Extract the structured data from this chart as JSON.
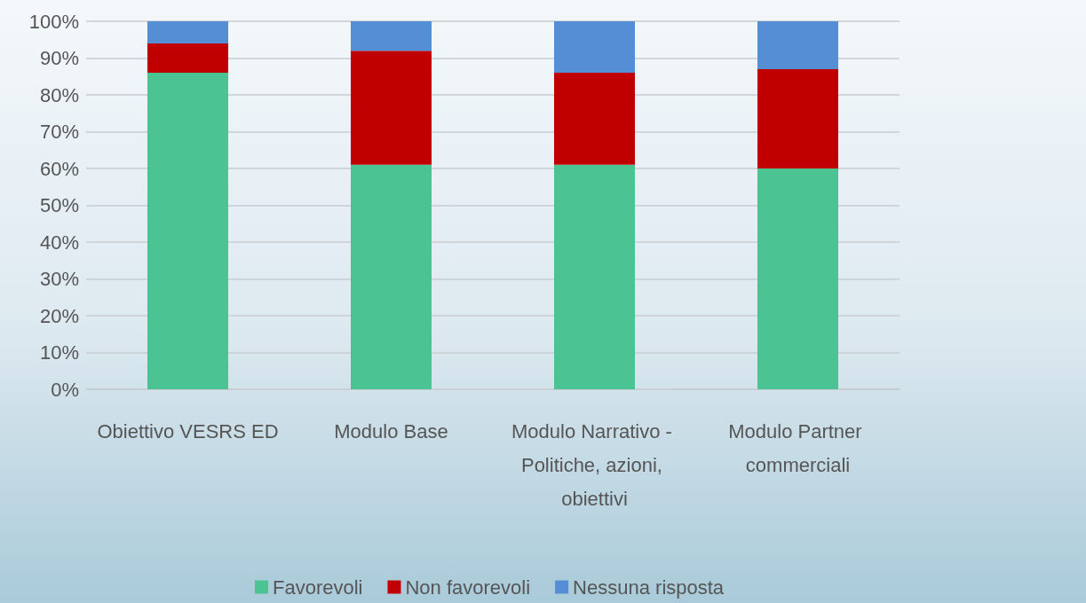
{
  "chart_data": {
    "type": "bar",
    "stacked": true,
    "categories": [
      "Obiettivo VESRS ED",
      "Modulo Base",
      "Modulo Narrativo - Politiche, azioni, obiettivi",
      "Modulo Partner commerciali"
    ],
    "series": [
      {
        "name": "Favorevoli",
        "color": "#4bc393",
        "values": [
          86,
          61,
          61,
          60
        ]
      },
      {
        "name": "Non favorevoli",
        "color": "#c00000",
        "values": [
          8,
          31,
          25,
          27
        ]
      },
      {
        "name": "Nessuna risposta",
        "color": "#558ed5",
        "values": [
          6,
          8,
          14,
          13
        ]
      }
    ],
    "ylim": [
      0,
      100
    ],
    "yticks": [
      {
        "value": 0,
        "label": "0%"
      },
      {
        "value": 10,
        "label": "10%"
      },
      {
        "value": 20,
        "label": "20%"
      },
      {
        "value": 30,
        "label": "30%"
      },
      {
        "value": 40,
        "label": "40%"
      },
      {
        "value": 50,
        "label": "50%"
      },
      {
        "value": 60,
        "label": "60%"
      },
      {
        "value": 70,
        "label": "70%"
      },
      {
        "value": 80,
        "label": "80%"
      },
      {
        "value": 90,
        "label": "90%"
      },
      {
        "value": 100,
        "label": "100%"
      }
    ],
    "grid": "y",
    "legend": "bottom"
  }
}
